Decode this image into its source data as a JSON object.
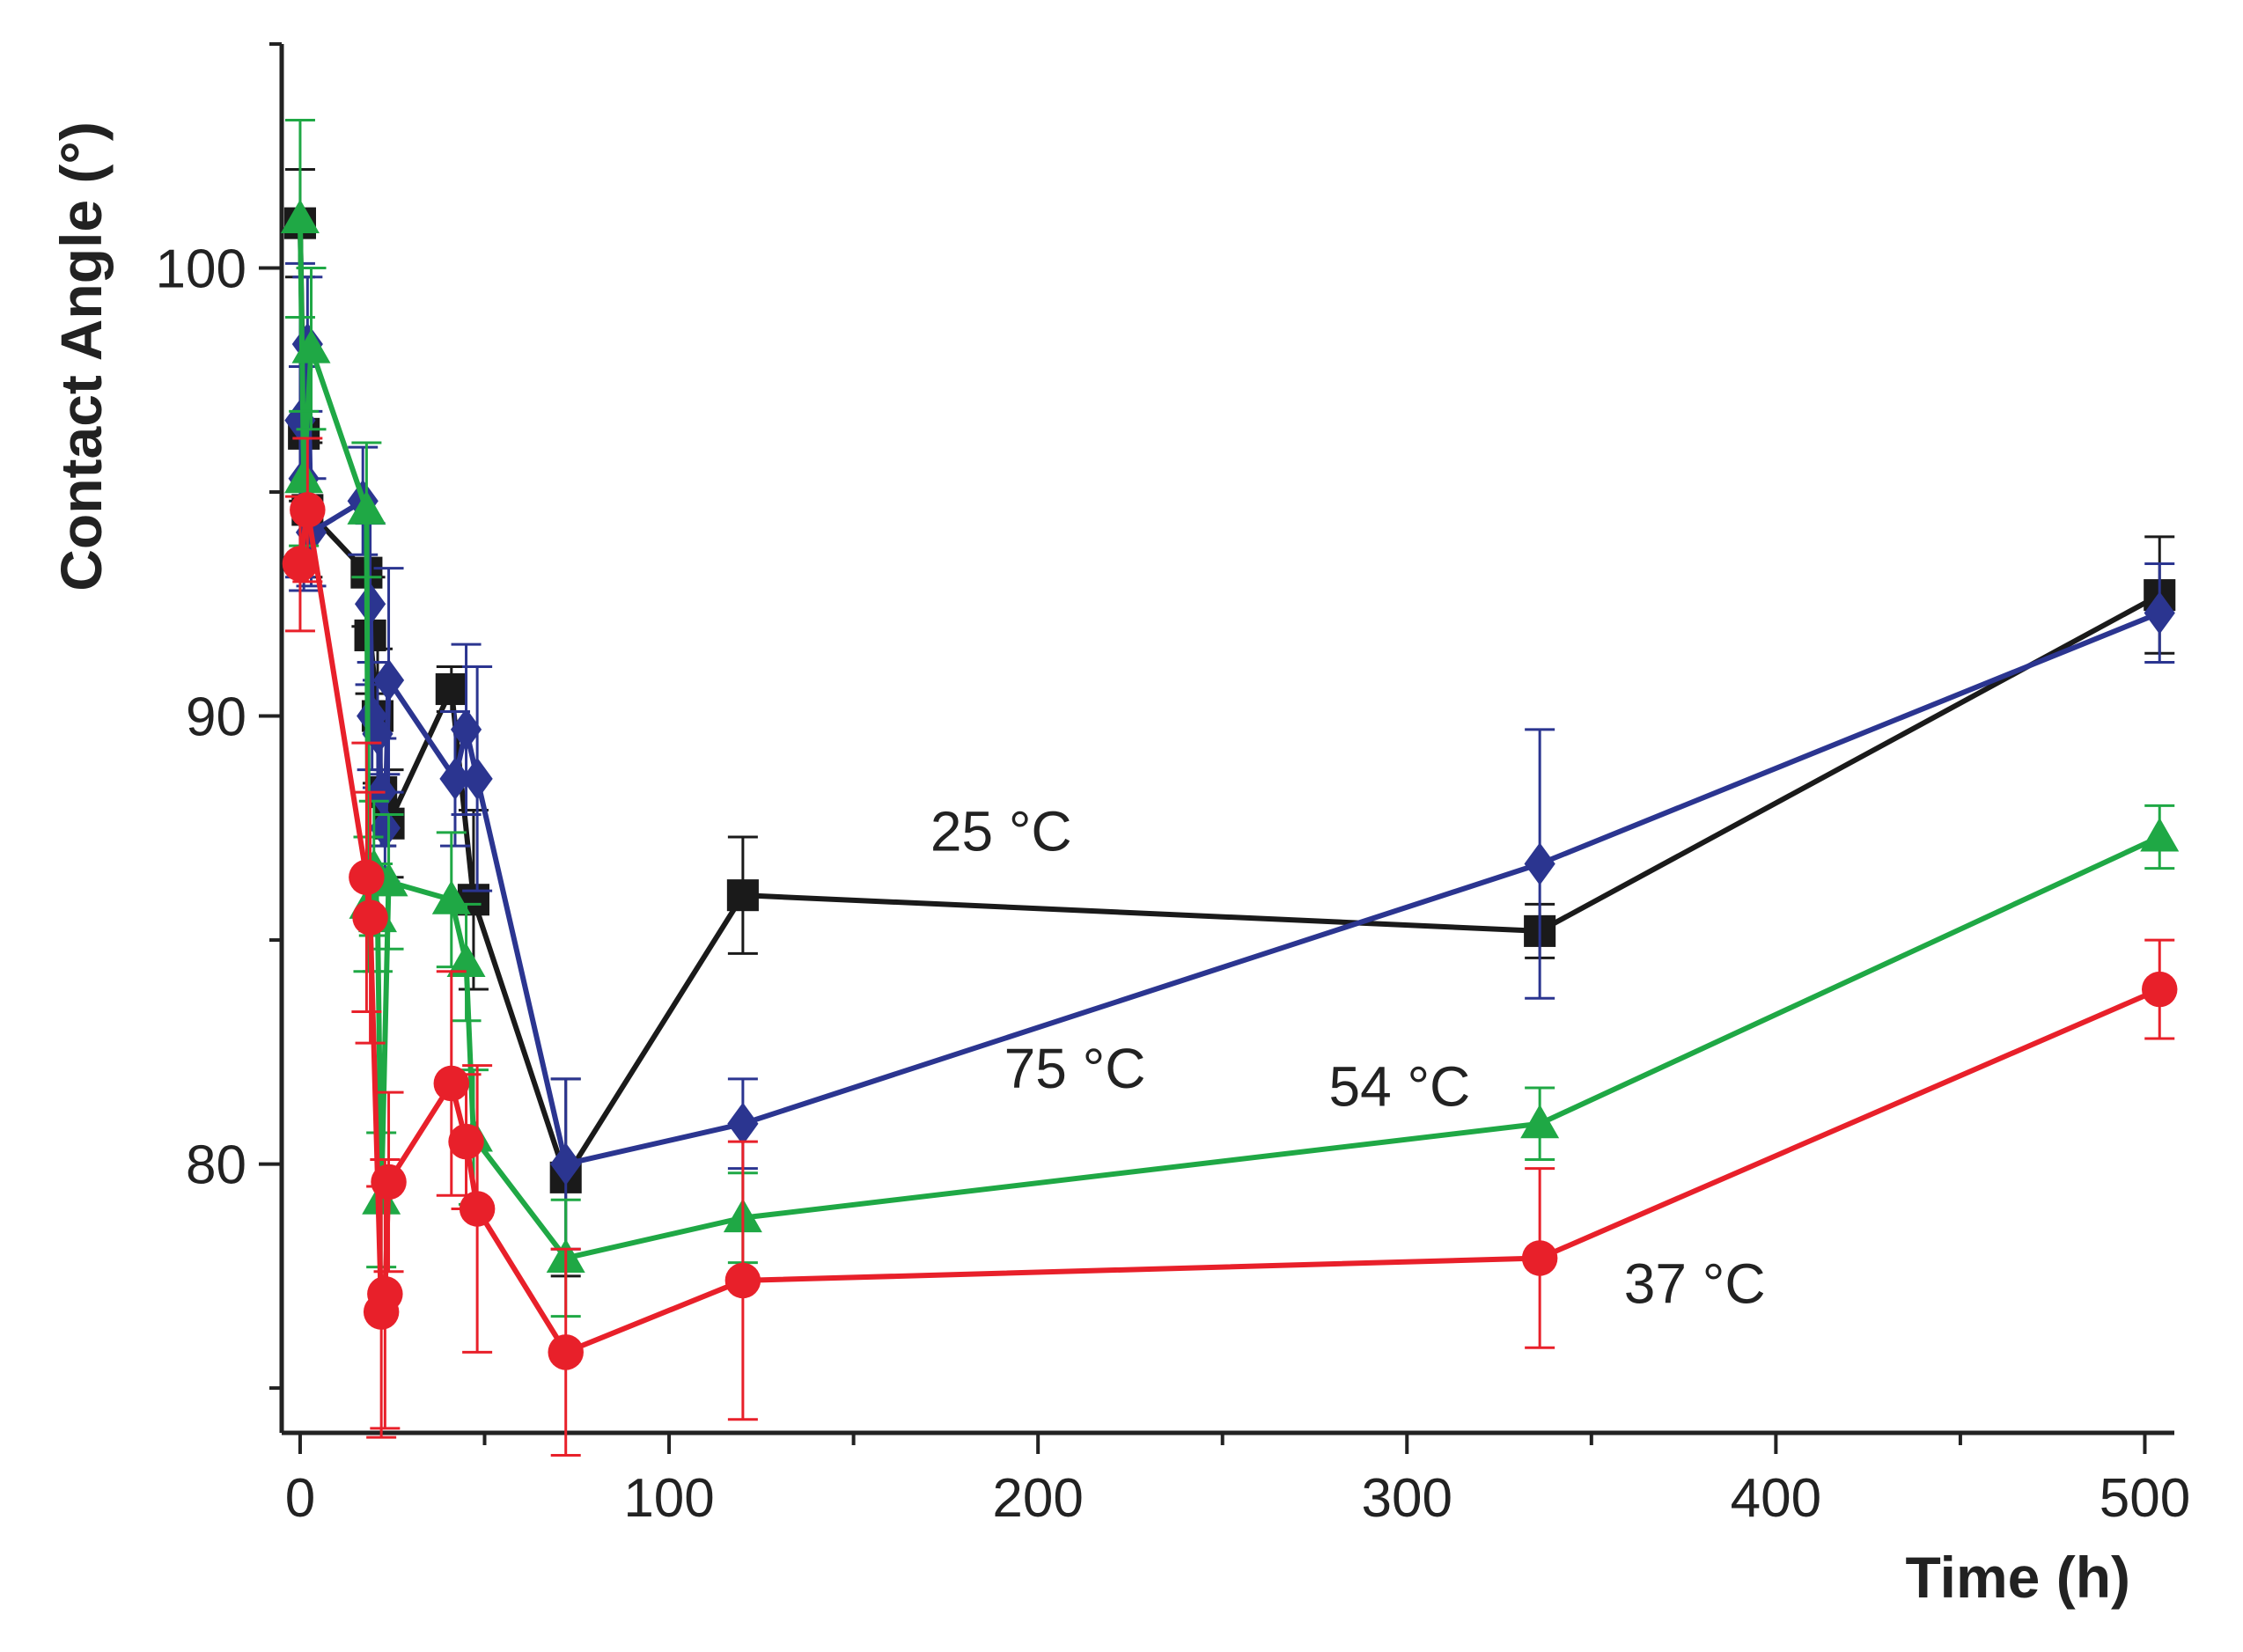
{
  "chart_data": {
    "type": "line",
    "title": "",
    "xlabel": "Time (h)",
    "ylabel": "Contact Angle (°)",
    "xlim": [
      -5,
      508
    ],
    "ylim": [
      74,
      105
    ],
    "xticks": [
      0,
      100,
      200,
      300,
      400,
      500
    ],
    "xtick_labels": [
      "0",
      "100",
      "200",
      "300",
      "400",
      "500"
    ],
    "yticks": [
      80,
      90,
      100
    ],
    "ytick_labels": [
      "80",
      "90",
      "100"
    ],
    "grid": false,
    "series": [
      {
        "name": "25 °C",
        "color": "#1a1a1a",
        "marker": "square",
        "points": [
          {
            "x": 0,
            "y": 101.0,
            "err": 1.2
          },
          {
            "x": 1,
            "y": 96.3,
            "err": 1.5
          },
          {
            "x": 2,
            "y": 94.6,
            "err": 1.5
          },
          {
            "x": 18,
            "y": 93.2,
            "err": 1.2
          },
          {
            "x": 19,
            "y": 91.8,
            "err": 1.3
          },
          {
            "x": 21,
            "y": 90.0,
            "err": 1.5
          },
          {
            "x": 22,
            "y": 88.3,
            "err": 1.2
          },
          {
            "x": 24,
            "y": 87.6,
            "err": 1.2
          },
          {
            "x": 41,
            "y": 90.6,
            "err": 0.5
          },
          {
            "x": 47,
            "y": 85.9,
            "err": 2.0
          },
          {
            "x": 72,
            "y": 79.7,
            "err": 2.2
          },
          {
            "x": 120,
            "y": 86.0,
            "err": 1.3
          },
          {
            "x": 336,
            "y": 85.2,
            "err": 0.6
          },
          {
            "x": 504,
            "y": 92.7,
            "err": 1.3
          }
        ]
      },
      {
        "name": "75 °C",
        "color": "#2b3590",
        "marker": "diamond",
        "points": [
          {
            "x": 0,
            "y": 96.6,
            "err": 3.5
          },
          {
            "x": 1,
            "y": 95.3,
            "err": 2.5
          },
          {
            "x": 2,
            "y": 98.3,
            "err": 1.5
          },
          {
            "x": 3,
            "y": 94.1,
            "err": 1.2
          },
          {
            "x": 17,
            "y": 94.8,
            "err": 1.2
          },
          {
            "x": 19,
            "y": 92.5,
            "err": 1.8
          },
          {
            "x": 19.5,
            "y": 90.0,
            "err": 1.2
          },
          {
            "x": 21,
            "y": 89.6,
            "err": 1.2
          },
          {
            "x": 22,
            "y": 88.3,
            "err": 1.2
          },
          {
            "x": 23,
            "y": 87.5,
            "err": 1.2
          },
          {
            "x": 24,
            "y": 90.8,
            "err": 2.5
          },
          {
            "x": 42,
            "y": 88.6,
            "err": 1.5
          },
          {
            "x": 45,
            "y": 89.7,
            "err": 1.9
          },
          {
            "x": 48,
            "y": 88.6,
            "err": 2.5
          },
          {
            "x": 72,
            "y": 80.0,
            "err": 1.9
          },
          {
            "x": 120,
            "y": 80.9,
            "err": 1.0
          },
          {
            "x": 336,
            "y": 86.7,
            "err": 3.0
          },
          {
            "x": 504,
            "y": 92.3,
            "err": 1.1
          }
        ]
      },
      {
        "name": "54 °C",
        "color": "#1fa845",
        "marker": "triangle",
        "points": [
          {
            "x": 0,
            "y": 101.1,
            "err": 2.2
          },
          {
            "x": 1,
            "y": 95.3,
            "err": 1.5
          },
          {
            "x": 3,
            "y": 98.2,
            "err": 1.8
          },
          {
            "x": 18,
            "y": 94.6,
            "err": 1.5
          },
          {
            "x": 18.5,
            "y": 85.8,
            "err": 1.5
          },
          {
            "x": 20,
            "y": 86.6,
            "err": 1.5
          },
          {
            "x": 21,
            "y": 85.5,
            "err": 1.2
          },
          {
            "x": 22,
            "y": 79.2,
            "err": 1.5
          },
          {
            "x": 24,
            "y": 86.3,
            "err": 1.5
          },
          {
            "x": 41,
            "y": 85.9,
            "err": 1.5
          },
          {
            "x": 45,
            "y": 84.5,
            "err": 1.3
          },
          {
            "x": 47,
            "y": 80.6,
            "err": 1.5
          },
          {
            "x": 72,
            "y": 77.9,
            "err": 1.3
          },
          {
            "x": 120,
            "y": 78.8,
            "err": 1.0
          },
          {
            "x": 336,
            "y": 80.9,
            "err": 0.8
          },
          {
            "x": 504,
            "y": 87.3,
            "err": 0.7
          }
        ]
      },
      {
        "name": "37 °C",
        "color": "#e8202a",
        "marker": "circle",
        "points": [
          {
            "x": 0,
            "y": 93.4,
            "err": 1.5
          },
          {
            "x": 2,
            "y": 94.6,
            "err": 1.6
          },
          {
            "x": 18,
            "y": 86.4,
            "err": 3.0
          },
          {
            "x": 19,
            "y": 85.5,
            "err": 2.8
          },
          {
            "x": 22,
            "y": 76.7,
            "err": 2.8
          },
          {
            "x": 23,
            "y": 77.1,
            "err": 3.0
          },
          {
            "x": 24,
            "y": 79.6,
            "err": 2.0
          },
          {
            "x": 41,
            "y": 81.8,
            "err": 2.5
          },
          {
            "x": 45,
            "y": 80.5,
            "err": 1.5
          },
          {
            "x": 48,
            "y": 79.0,
            "err": 3.2
          },
          {
            "x": 72,
            "y": 75.8,
            "err": 2.3
          },
          {
            "x": 120,
            "y": 77.4,
            "err": 3.1
          },
          {
            "x": 336,
            "y": 77.9,
            "err": 2.0
          },
          {
            "x": 504,
            "y": 83.9,
            "err": 1.1
          }
        ]
      }
    ],
    "annotations": [
      {
        "text": "25 °C",
        "x": 190,
        "y": 87.0
      },
      {
        "text": "75 °C",
        "x": 210,
        "y": 81.7
      },
      {
        "text": "54 °C",
        "x": 298,
        "y": 81.3
      },
      {
        "text": "37 °C",
        "x": 378,
        "y": 76.9
      }
    ]
  }
}
